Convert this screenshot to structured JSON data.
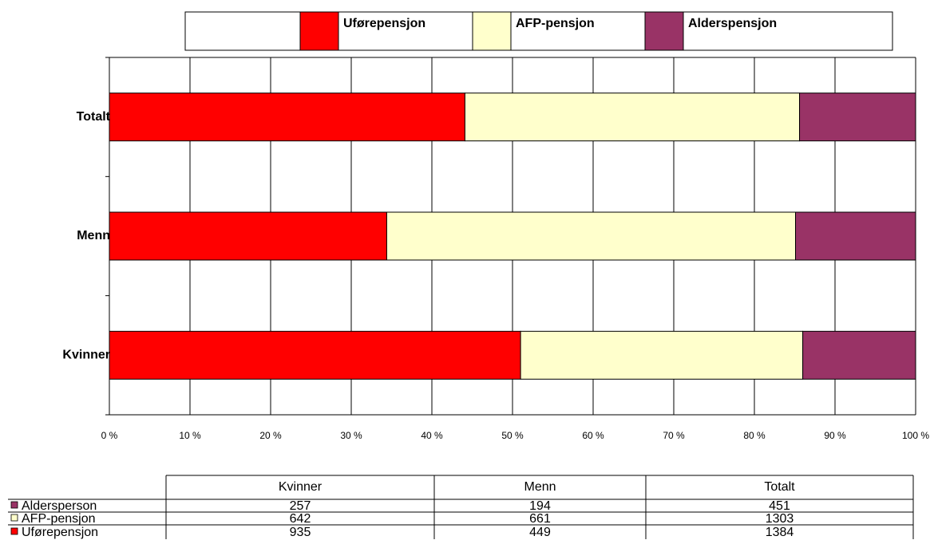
{
  "chart_data": {
    "type": "stacked_percent_bar",
    "orientation": "horizontal",
    "categories": [
      "Kvinner",
      "Menn",
      "Totalt"
    ],
    "series": [
      {
        "name": "Uførepensjon",
        "color": "#ff0000",
        "values": [
          51.0,
          34.4,
          44.1
        ]
      },
      {
        "name": "AFP-pensjon",
        "color": "#ffffcc",
        "values": [
          35.0,
          50.7,
          41.5
        ]
      },
      {
        "name": "Alderspensjon",
        "color": "#993366",
        "values": [
          14.0,
          14.9,
          14.4
        ]
      }
    ],
    "xlim": [
      0,
      100
    ],
    "xticks": [
      {
        "value": 0,
        "label": "0 %"
      },
      {
        "value": 10,
        "label": "10 %"
      },
      {
        "value": 20,
        "label": "20 %"
      },
      {
        "value": 30,
        "label": "30 %"
      },
      {
        "value": 40,
        "label": "40 %"
      },
      {
        "value": 50,
        "label": "50 %"
      },
      {
        "value": 60,
        "label": "60 %"
      },
      {
        "value": 70,
        "label": "70 %"
      },
      {
        "value": 80,
        "label": "80 %"
      },
      {
        "value": 90,
        "label": "90 %"
      },
      {
        "value": 100,
        "label": "100 %"
      }
    ],
    "grid": true,
    "legend": "top"
  },
  "table": {
    "header": [
      "Kvinner",
      "Menn",
      "Totalt"
    ],
    "rows": [
      {
        "label": "Aldersperson",
        "color": "#993366",
        "values": [
          257,
          194,
          451
        ]
      },
      {
        "label": "AFP-pensjon",
        "color": "#ffffcc",
        "values": [
          642,
          661,
          1303
        ]
      },
      {
        "label": "Uførepensjon",
        "color": "#ff0000",
        "values": [
          935,
          449,
          1384
        ]
      }
    ]
  }
}
